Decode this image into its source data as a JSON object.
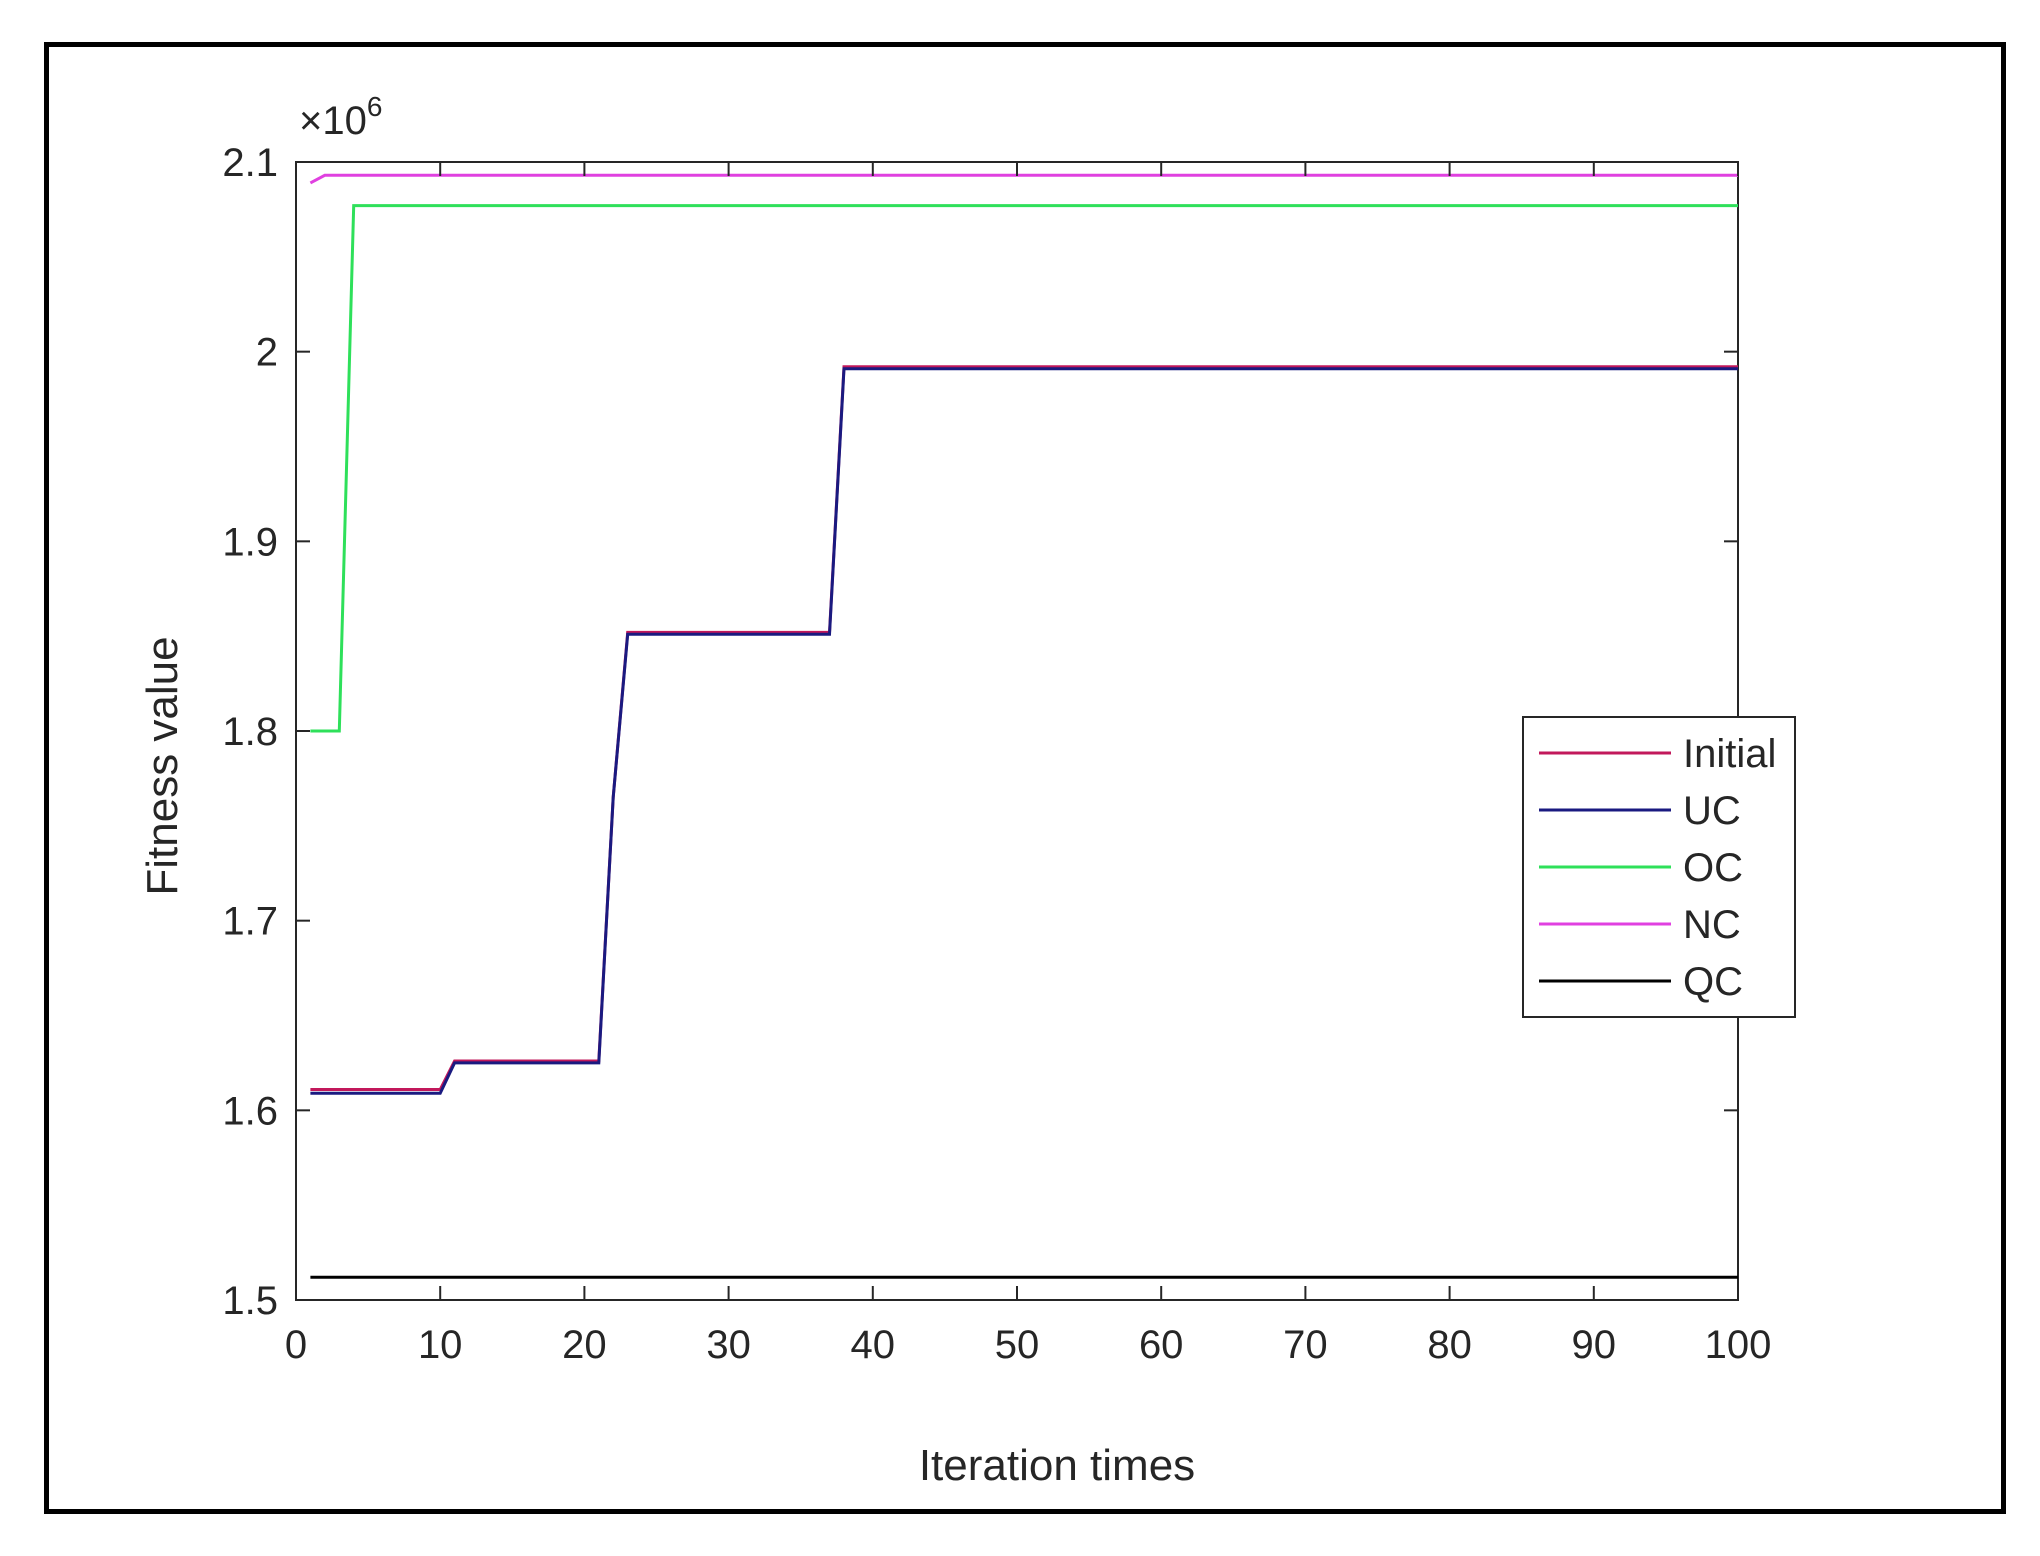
{
  "chart_data": {
    "type": "line",
    "title": "",
    "xlabel": "Iteration times",
    "ylabel": "Fitness value",
    "y_multiplier": "×10",
    "y_multiplier_exponent": "6",
    "xlim": [
      0,
      100
    ],
    "ylim": [
      1.5,
      2.1
    ],
    "xticks": [
      0,
      10,
      20,
      30,
      40,
      50,
      60,
      70,
      80,
      90,
      100
    ],
    "yticks": [
      1.5,
      1.6,
      1.7,
      1.8,
      1.9,
      2,
      2.1
    ],
    "xtick_labels": [
      "0",
      "10",
      "20",
      "30",
      "40",
      "50",
      "60",
      "70",
      "80",
      "90",
      "100"
    ],
    "ytick_labels": [
      "1.5",
      "1.6",
      "1.7",
      "1.8",
      "1.9",
      "2",
      "2.1"
    ],
    "grid": false,
    "legend_position": "right",
    "series": [
      {
        "name": "Initial",
        "color": "#c2185b",
        "x": [
          1,
          10,
          11,
          21,
          22,
          23,
          37,
          38,
          100
        ],
        "y": [
          1.611,
          1.611,
          1.626,
          1.626,
          1.765,
          1.852,
          1.852,
          1.992,
          1.992
        ]
      },
      {
        "name": "UC",
        "color": "#1a1a80",
        "x": [
          1,
          10,
          11,
          21,
          22,
          23,
          37,
          38,
          100
        ],
        "y": [
          1.609,
          1.609,
          1.625,
          1.625,
          1.765,
          1.851,
          1.851,
          1.991,
          1.991
        ]
      },
      {
        "name": "OC",
        "color": "#2ee05a",
        "x": [
          1,
          3,
          4,
          100
        ],
        "y": [
          1.8,
          1.8,
          2.077,
          2.077
        ]
      },
      {
        "name": "NC",
        "color": "#e040e0",
        "x": [
          1,
          2,
          100
        ],
        "y": [
          2.089,
          2.093,
          2.093
        ]
      },
      {
        "name": "QC",
        "color": "#000000",
        "x": [
          1,
          100
        ],
        "y": [
          1.512,
          1.512
        ]
      }
    ]
  }
}
